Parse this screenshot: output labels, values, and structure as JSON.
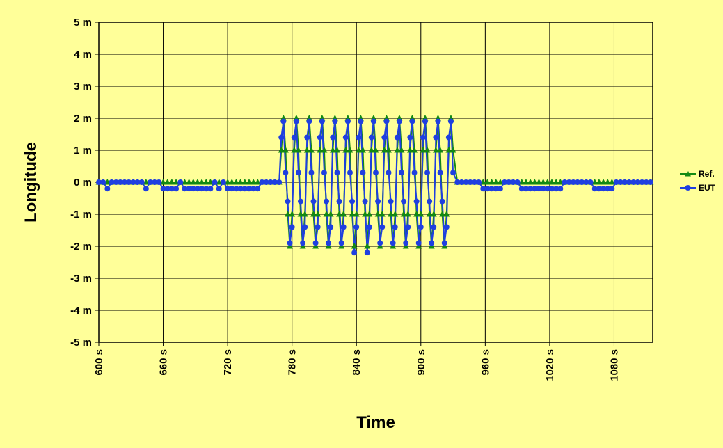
{
  "chart_data": {
    "type": "line",
    "x_label": "Time",
    "y_label": "Longitude",
    "xlim": [
      600,
      1116
    ],
    "ylim": [
      -5,
      5
    ],
    "xticks": [
      {
        "value": 600,
        "label": "600 s"
      },
      {
        "value": 660,
        "label": "660 s"
      },
      {
        "value": 720,
        "label": "720 s"
      },
      {
        "value": 780,
        "label": "780 s"
      },
      {
        "value": 840,
        "label": "840 s"
      },
      {
        "value": 900,
        "label": "900 s"
      },
      {
        "value": 960,
        "label": "960 s"
      },
      {
        "value": 1020,
        "label": "1020 s"
      },
      {
        "value": 1080,
        "label": "1080 s"
      }
    ],
    "yticks": [
      {
        "value": 5,
        "label": "5 m"
      },
      {
        "value": 4,
        "label": "4 m"
      },
      {
        "value": 3,
        "label": "3 m"
      },
      {
        "value": 2,
        "label": "2 m"
      },
      {
        "value": 1,
        "label": "1 m"
      },
      {
        "value": 0,
        "label": "0 m"
      },
      {
        "value": -1,
        "label": "-1 m"
      },
      {
        "value": -2,
        "label": "-2 m"
      },
      {
        "value": -3,
        "label": "-3 m"
      },
      {
        "value": -4,
        "label": "-4 m"
      },
      {
        "value": -5,
        "label": "-5 m"
      }
    ],
    "grid": true,
    "legend": "right",
    "x": [
      600,
      604,
      608,
      612,
      616,
      620,
      624,
      628,
      632,
      636,
      640,
      644,
      648,
      652,
      656,
      660,
      664,
      668,
      672,
      676,
      680,
      684,
      688,
      692,
      696,
      700,
      704,
      708,
      712,
      716,
      720,
      724,
      728,
      732,
      736,
      740,
      744,
      748,
      752,
      756,
      760,
      764,
      768,
      770,
      772,
      774,
      776,
      778,
      780,
      782,
      784,
      786,
      788,
      790,
      792,
      794,
      796,
      798,
      800,
      802,
      804,
      806,
      808,
      810,
      812,
      814,
      816,
      818,
      820,
      822,
      824,
      826,
      828,
      830,
      832,
      834,
      836,
      838,
      840,
      842,
      844,
      846,
      848,
      850,
      852,
      854,
      856,
      858,
      860,
      862,
      864,
      866,
      868,
      870,
      872,
      874,
      876,
      878,
      880,
      882,
      884,
      886,
      888,
      890,
      892,
      894,
      896,
      898,
      900,
      902,
      904,
      906,
      908,
      910,
      912,
      914,
      916,
      918,
      920,
      922,
      924,
      926,
      928,
      930,
      934,
      938,
      942,
      946,
      950,
      954,
      958,
      962,
      966,
      970,
      974,
      978,
      982,
      986,
      990,
      994,
      998,
      1002,
      1006,
      1010,
      1014,
      1018,
      1022,
      1026,
      1030,
      1034,
      1038,
      1042,
      1046,
      1050,
      1054,
      1058,
      1062,
      1066,
      1070,
      1074,
      1078,
      1082,
      1086,
      1090,
      1094,
      1098,
      1102,
      1106,
      1110,
      1114
    ],
    "series": [
      {
        "name": "Ref.",
        "color": "#138a13",
        "marker": "triangle",
        "values": [
          0,
          0,
          0,
          0,
          0,
          0,
          0,
          0,
          0,
          0,
          0,
          0,
          0,
          0,
          0,
          0,
          0,
          0,
          0,
          0,
          0,
          0,
          0,
          0,
          0,
          0,
          0,
          0,
          0,
          0,
          0,
          0,
          0,
          0,
          0,
          0,
          0,
          0,
          0,
          0,
          0,
          0,
          0,
          1,
          2,
          1,
          -1,
          -2,
          -1,
          1,
          2,
          1,
          -1,
          -2,
          -1,
          1,
          2,
          1,
          -1,
          -2,
          -1,
          1,
          2,
          1,
          -1,
          -2,
          -1,
          1,
          2,
          1,
          -1,
          -2,
          -1,
          1,
          2,
          1,
          -1,
          -2,
          -1,
          1,
          2,
          1,
          -1,
          -2,
          -1,
          1,
          2,
          1,
          -1,
          -2,
          -1,
          1,
          2,
          1,
          -1,
          -2,
          -1,
          1,
          2,
          1,
          -1,
          -2,
          -1,
          1,
          2,
          1,
          -1,
          -2,
          -1,
          1,
          2,
          1,
          -1,
          -2,
          -1,
          1,
          2,
          1,
          -1,
          -2,
          -1,
          1,
          2,
          1,
          0,
          0,
          0,
          0,
          0,
          0,
          0,
          0,
          0,
          0,
          0,
          0,
          0,
          0,
          0,
          0,
          0,
          0,
          0,
          0,
          0,
          0,
          0,
          0,
          0,
          0,
          0,
          0,
          0,
          0,
          0,
          0,
          0,
          0,
          0,
          0,
          0,
          0,
          0,
          0,
          0,
          0,
          0,
          0,
          0,
          0
        ]
      },
      {
        "name": "EUT",
        "color": "#1f3fe0",
        "marker": "circle",
        "values": [
          0,
          0,
          -0.2,
          0,
          0,
          0,
          0,
          0,
          0,
          0,
          0,
          -0.2,
          0,
          0,
          0,
          -0.2,
          -0.2,
          -0.2,
          -0.2,
          0,
          -0.2,
          -0.2,
          -0.2,
          -0.2,
          -0.2,
          -0.2,
          -0.2,
          0,
          -0.2,
          0,
          -0.2,
          -0.2,
          -0.2,
          -0.2,
          -0.2,
          -0.2,
          -0.2,
          -0.2,
          0,
          0,
          0,
          0,
          0,
          1.4,
          1.9,
          0.3,
          -0.6,
          -1.9,
          -1.4,
          1.4,
          1.9,
          0.3,
          -0.6,
          -1.9,
          -1.4,
          1.4,
          1.9,
          0.3,
          -0.6,
          -1.9,
          -1.4,
          1.4,
          1.9,
          0.3,
          -0.6,
          -1.9,
          -1.4,
          1.4,
          1.9,
          0.3,
          -0.6,
          -1.9,
          -1.4,
          1.4,
          1.9,
          0.3,
          -0.6,
          -2.2,
          -1.4,
          1.4,
          1.9,
          0.3,
          -0.6,
          -2.2,
          -1.4,
          1.4,
          1.9,
          0.3,
          -0.6,
          -1.9,
          -1.4,
          1.4,
          1.9,
          0.3,
          -0.6,
          -1.9,
          -1.4,
          1.4,
          1.9,
          0.3,
          -0.6,
          -1.9,
          -1.4,
          1.4,
          1.9,
          0.3,
          -0.6,
          -1.9,
          -1.4,
          1.4,
          1.9,
          0.3,
          -0.6,
          -1.9,
          -1.4,
          1.4,
          1.9,
          0.3,
          -0.6,
          -1.9,
          -1.4,
          1.4,
          1.9,
          0.3,
          0,
          0,
          0,
          0,
          0,
          0,
          -0.2,
          -0.2,
          -0.2,
          -0.2,
          -0.2,
          0,
          0,
          0,
          0,
          -0.2,
          -0.2,
          -0.2,
          -0.2,
          -0.2,
          -0.2,
          -0.2,
          -0.2,
          -0.2,
          -0.2,
          0,
          0,
          0,
          0,
          0,
          0,
          0,
          -0.2,
          -0.2,
          -0.2,
          -0.2,
          -0.2,
          0,
          0,
          0,
          0,
          0,
          0,
          0,
          0,
          0
        ]
      }
    ]
  }
}
